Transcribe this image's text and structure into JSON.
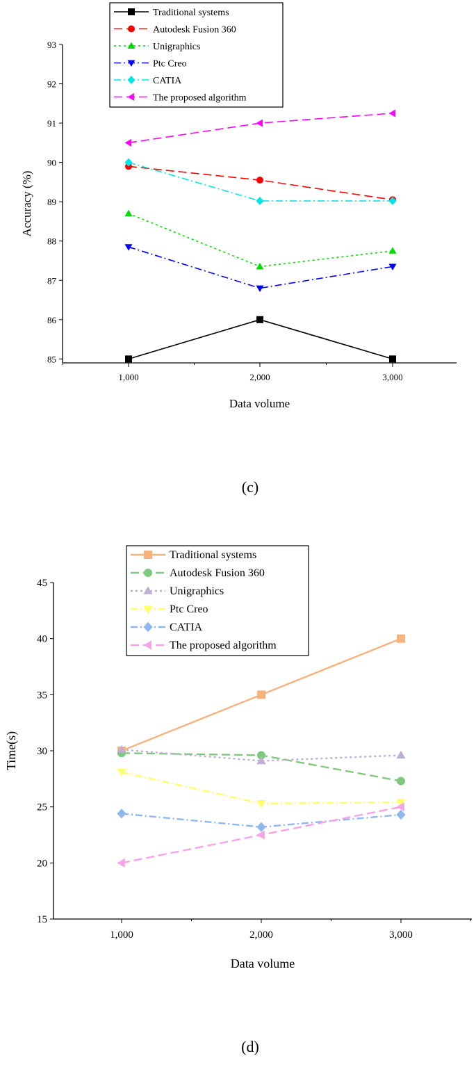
{
  "chart_data": [
    {
      "type": "line",
      "panel_label": "(c)",
      "xlabel": "Data volume",
      "ylabel": "Accuracy (%)",
      "categories": [
        "1,000",
        "2,000",
        "3,000"
      ],
      "y_ticks": [
        "85",
        "86",
        "87",
        "88",
        "89",
        "90",
        "91",
        "92",
        "93"
      ],
      "ylim": [
        84.9,
        93
      ],
      "series": [
        {
          "name": "Traditional systems",
          "values": [
            85.0,
            86.0,
            85.0
          ],
          "color": "#000000",
          "dash": "solid",
          "marker": "square"
        },
        {
          "name": "Autodesk Fusion 360",
          "values": [
            89.9,
            89.55,
            89.05
          ],
          "color": "#ff0000",
          "dash": "dash",
          "marker": "circle"
        },
        {
          "name": "Unigraphics",
          "values": [
            88.7,
            87.35,
            87.75
          ],
          "color": "#00dd00",
          "dash": "dot",
          "marker": "triangle-up"
        },
        {
          "name": "Ptc Creo",
          "values": [
            87.85,
            86.8,
            87.35
          ],
          "color": "#0000ff",
          "dash": "dashdot",
          "marker": "triangle-down"
        },
        {
          "name": "CATIA",
          "values": [
            90.0,
            89.02,
            89.02
          ],
          "color": "#00e5e5",
          "dash": "dashdot",
          "marker": "diamond"
        },
        {
          "name": "The proposed algorithm",
          "values": [
            90.5,
            91.0,
            91.25
          ],
          "color": "#ff00ff",
          "dash": "dash",
          "marker": "triangle-left"
        }
      ],
      "legend_position": "top-left",
      "grid": false
    },
    {
      "type": "line",
      "panel_label": "(d)",
      "xlabel": "Data volume",
      "ylabel": "Time(s)",
      "categories": [
        "1,000",
        "2,000",
        "3,000"
      ],
      "y_ticks": [
        "15",
        "20",
        "25",
        "30",
        "35",
        "40",
        "45"
      ],
      "ylim": [
        15,
        45
      ],
      "series": [
        {
          "name": "Traditional systems",
          "values": [
            30.0,
            35.0,
            40.0
          ],
          "color": "#f8b27c",
          "dash": "solid",
          "marker": "square"
        },
        {
          "name": "Autodesk Fusion 360",
          "values": [
            29.8,
            29.6,
            27.3
          ],
          "color": "#7fc97f",
          "dash": "dash",
          "marker": "circle"
        },
        {
          "name": "Unigraphics",
          "values": [
            30.1,
            29.1,
            29.6
          ],
          "color": "#beaed4",
          "dash": "dot",
          "marker": "triangle-up"
        },
        {
          "name": "Ptc Creo",
          "values": [
            28.1,
            25.3,
            25.4
          ],
          "color": "#ffff66",
          "dash": "dashdot",
          "marker": "triangle-down"
        },
        {
          "name": "CATIA",
          "values": [
            24.4,
            23.2,
            24.3
          ],
          "color": "#8fb7ef",
          "dash": "dashdot",
          "marker": "diamond"
        },
        {
          "name": "The proposed algorithm",
          "values": [
            20.0,
            22.5,
            25.0
          ],
          "color": "#f8a2e8",
          "dash": "dash",
          "marker": "triangle-left"
        }
      ],
      "legend_position": "top-left",
      "grid": false
    }
  ]
}
